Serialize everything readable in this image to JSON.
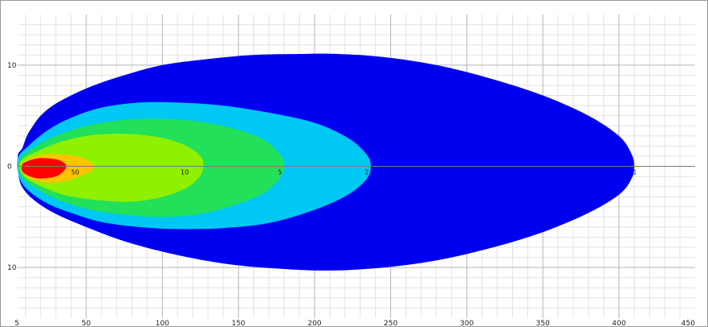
{
  "chart_data": {
    "type": "contour",
    "title": "",
    "xlabel": "",
    "ylabel": "",
    "xlim": [
      5,
      450
    ],
    "ylim": [
      -15,
      15
    ],
    "grid": true,
    "x_ticks": [
      "5",
      "50",
      "100",
      "150",
      "200",
      "250",
      "300",
      "350",
      "400",
      "450"
    ],
    "y_ticks": [
      "10",
      "0",
      "10"
    ],
    "contours": [
      {
        "label": "1",
        "color": "#0000f0",
        "outline": [
          [
            5,
            1
          ],
          [
            8,
            1.8
          ],
          [
            11,
            3
          ],
          [
            15,
            4
          ],
          [
            20,
            5
          ],
          [
            28,
            6
          ],
          [
            40,
            7
          ],
          [
            55,
            8
          ],
          [
            75,
            9
          ],
          [
            100,
            10
          ],
          [
            130,
            10.6
          ],
          [
            160,
            11
          ],
          [
            190,
            11.1
          ],
          [
            215,
            11.1
          ],
          [
            245,
            10.8
          ],
          [
            280,
            10
          ],
          [
            315,
            8.7
          ],
          [
            350,
            7
          ],
          [
            380,
            5
          ],
          [
            400,
            3
          ],
          [
            408,
            1.3
          ],
          [
            410,
            0
          ],
          [
            408,
            -1.3
          ],
          [
            400,
            -2.8
          ],
          [
            380,
            -4.6
          ],
          [
            350,
            -6.5
          ],
          [
            315,
            -8.1
          ],
          [
            280,
            -9.3
          ],
          [
            245,
            -10
          ],
          [
            210,
            -10.3
          ],
          [
            175,
            -10.1
          ],
          [
            140,
            -9.6
          ],
          [
            105,
            -8.6
          ],
          [
            75,
            -7.4
          ],
          [
            50,
            -6
          ],
          [
            30,
            -4.7
          ],
          [
            18,
            -3.6
          ],
          [
            10,
            -2.5
          ],
          [
            6,
            -1.3
          ]
        ]
      },
      {
        "label": "2",
        "color": "#00c8f5",
        "outline": [
          [
            5,
            0.8
          ],
          [
            12,
            2
          ],
          [
            25,
            3.6
          ],
          [
            40,
            4.8
          ],
          [
            60,
            5.8
          ],
          [
            85,
            6.3
          ],
          [
            110,
            6.3
          ],
          [
            140,
            6
          ],
          [
            170,
            5.3
          ],
          [
            200,
            4.3
          ],
          [
            222,
            2.8
          ],
          [
            234,
            1.2
          ],
          [
            237,
            0
          ],
          [
            234,
            -1.3
          ],
          [
            222,
            -2.8
          ],
          [
            200,
            -4.3
          ],
          [
            170,
            -5.6
          ],
          [
            140,
            -6.1
          ],
          [
            110,
            -6.2
          ],
          [
            85,
            -6
          ],
          [
            60,
            -5.5
          ],
          [
            40,
            -4.6
          ],
          [
            25,
            -3.7
          ],
          [
            12,
            -2.4
          ],
          [
            6,
            -1.1
          ]
        ]
      },
      {
        "label": "5",
        "color": "#22e05a",
        "outline": [
          [
            6,
            0.6
          ],
          [
            15,
            1.8
          ],
          [
            30,
            3
          ],
          [
            50,
            4
          ],
          [
            75,
            4.6
          ],
          [
            100,
            4.7
          ],
          [
            125,
            4.4
          ],
          [
            150,
            3.6
          ],
          [
            168,
            2.5
          ],
          [
            178,
            1
          ],
          [
            180,
            0
          ],
          [
            177,
            -1.2
          ],
          [
            167,
            -2.6
          ],
          [
            148,
            -3.8
          ],
          [
            125,
            -4.7
          ],
          [
            100,
            -5
          ],
          [
            75,
            -4.8
          ],
          [
            50,
            -4.2
          ],
          [
            30,
            -3.2
          ],
          [
            15,
            -2
          ],
          [
            7,
            -0.9
          ]
        ]
      },
      {
        "label": "10",
        "color": "#8ff000",
        "outline": [
          [
            7,
            0.5
          ],
          [
            18,
            1.5
          ],
          [
            35,
            2.5
          ],
          [
            55,
            3.1
          ],
          [
            78,
            3.2
          ],
          [
            100,
            2.8
          ],
          [
            116,
            2
          ],
          [
            125,
            1
          ],
          [
            127,
            0
          ],
          [
            124,
            -1.1
          ],
          [
            115,
            -2.2
          ],
          [
            98,
            -3.1
          ],
          [
            78,
            -3.5
          ],
          [
            55,
            -3.3
          ],
          [
            35,
            -2.8
          ],
          [
            18,
            -1.8
          ],
          [
            8,
            -0.8
          ]
        ]
      },
      {
        "label": "50",
        "color": "#ffc400",
        "outline": [
          [
            8,
            0.3
          ],
          [
            15,
            0.9
          ],
          [
            25,
            1.2
          ],
          [
            40,
            1.1
          ],
          [
            48,
            0.8
          ],
          [
            53,
            0.4
          ],
          [
            55,
            0
          ],
          [
            53,
            -0.5
          ],
          [
            47,
            -0.9
          ],
          [
            38,
            -1.4
          ],
          [
            25,
            -1.6
          ],
          [
            15,
            -1.3
          ],
          [
            8,
            -0.6
          ]
        ]
      },
      {
        "label": "",
        "color": "#ff0000",
        "outline": [
          [
            8,
            0.2
          ],
          [
            13,
            0.6
          ],
          [
            20,
            0.8
          ],
          [
            30,
            0.7
          ],
          [
            35,
            0.4
          ],
          [
            37,
            0
          ],
          [
            35,
            -0.5
          ],
          [
            30,
            -1
          ],
          [
            20,
            -1.2
          ],
          [
            13,
            -1
          ],
          [
            8,
            -0.5
          ]
        ]
      }
    ],
    "contour_labels": [
      {
        "text": "50",
        "x": 40,
        "y": -0.8
      },
      {
        "text": "10",
        "x": 112,
        "y": -0.8
      },
      {
        "text": "5",
        "x": 176,
        "y": -0.8
      },
      {
        "text": "2",
        "x": 233,
        "y": -0.8
      },
      {
        "text": "1",
        "x": 409,
        "y": -0.8
      }
    ]
  }
}
